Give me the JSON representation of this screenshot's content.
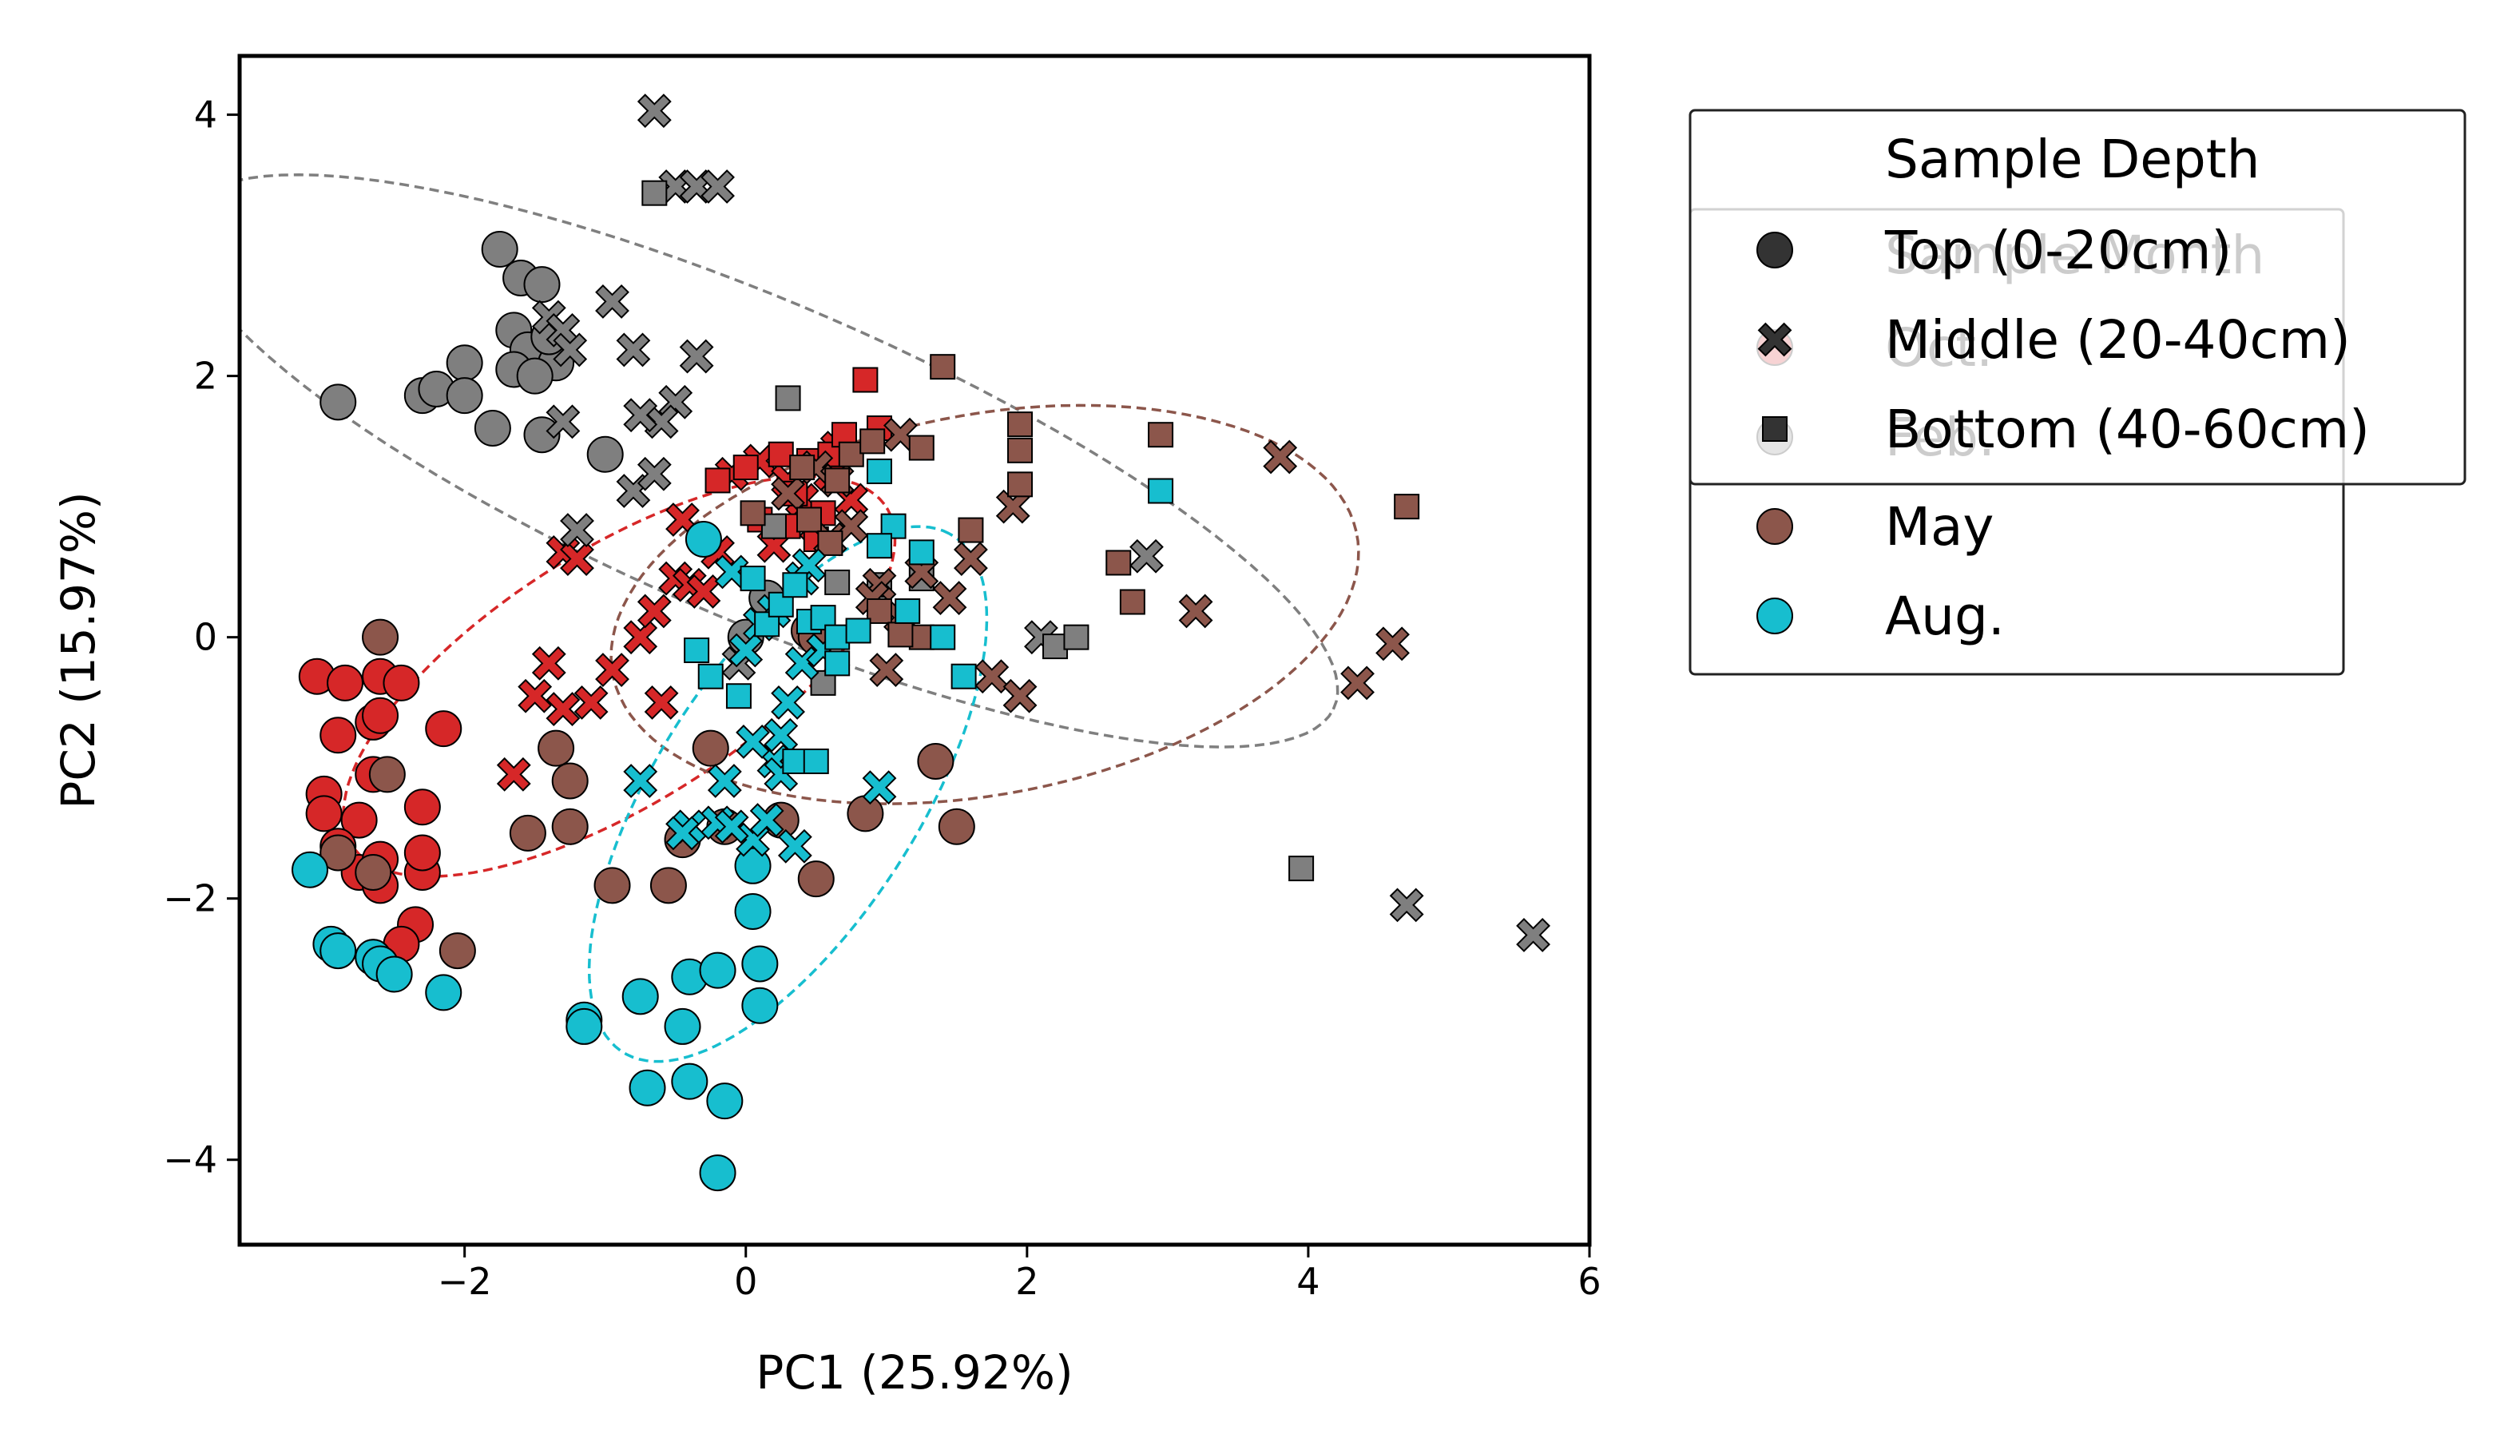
{
  "chart_data": {
    "type": "scatter",
    "title": "",
    "xlabel": "PC1 (25.92%)",
    "ylabel": "PC2 (15.97%)",
    "xlim": [
      -3.6,
      6.0
    ],
    "ylim": [
      -4.65,
      4.45
    ],
    "xticks": [
      -2,
      0,
      2,
      4,
      6
    ],
    "yticks": [
      -4,
      -2,
      0,
      2,
      4
    ],
    "grid": false,
    "colors": {
      "Oct.": "#d62728",
      "Feb.": "#7f7f7f",
      "May": "#8c564b",
      "Aug.": "#17becf",
      "legend_marker": "#333333"
    },
    "legend_month": {
      "title": "Sample Month",
      "placement": "upper-right-outside",
      "entries": [
        "Oct.",
        "Feb.",
        "May",
        "Aug."
      ]
    },
    "legend_depth": {
      "title": "Sample Depth",
      "placement": "upper-right-outside",
      "entries": [
        {
          "label": "Top (0-20cm)",
          "marker": "circle"
        },
        {
          "label": "Middle (20-40cm)",
          "marker": "x"
        },
        {
          "label": "Bottom (40-60cm)",
          "marker": "square"
        }
      ]
    },
    "ellipses": [
      {
        "group": "Oct.",
        "cx": -0.9,
        "cy": -0.3,
        "rx": 2.3,
        "ry": 0.95,
        "angle": 35
      },
      {
        "group": "Feb.",
        "cx": 0.1,
        "cy": 1.35,
        "rx": 4.5,
        "ry": 1.2,
        "angle": -25
      },
      {
        "group": "May",
        "cx": 1.7,
        "cy": 0.25,
        "rx": 2.7,
        "ry": 1.45,
        "angle": 12
      },
      {
        "group": "Aug.",
        "cx": 0.3,
        "cy": -1.2,
        "rx": 2.3,
        "ry": 0.95,
        "angle": 60
      }
    ],
    "series": [
      {
        "name": "Oct.",
        "top": [
          [
            -3.05,
            -0.3
          ],
          [
            -2.85,
            -0.35
          ],
          [
            -2.6,
            -0.3
          ],
          [
            -2.45,
            -0.35
          ],
          [
            -2.9,
            -0.75
          ],
          [
            -2.65,
            -0.65
          ],
          [
            -2.6,
            -0.6
          ],
          [
            -2.15,
            -0.7
          ],
          [
            -3.0,
            -1.2
          ],
          [
            -2.75,
            -1.4
          ],
          [
            -2.65,
            -1.05
          ],
          [
            -2.3,
            -1.3
          ],
          [
            -3.0,
            -1.35
          ],
          [
            -2.9,
            -1.6
          ],
          [
            -2.75,
            -1.8
          ],
          [
            -2.6,
            -1.7
          ],
          [
            -2.6,
            -1.9
          ],
          [
            -2.3,
            -1.8
          ],
          [
            -2.3,
            -1.65
          ],
          [
            -2.35,
            -2.2
          ],
          [
            -2.45,
            -2.35
          ],
          [
            -2.65,
            -2.45
          ]
        ],
        "middle": [
          [
            -1.65,
            -1.05
          ],
          [
            -1.5,
            -0.45
          ],
          [
            -1.4,
            -0.2
          ],
          [
            -1.3,
            -0.55
          ],
          [
            -1.1,
            -0.5
          ],
          [
            -0.95,
            -0.25
          ],
          [
            -0.75,
            0.0
          ],
          [
            -0.65,
            0.2
          ],
          [
            -0.6,
            -0.5
          ],
          [
            -0.5,
            0.45
          ],
          [
            -0.45,
            0.9
          ],
          [
            -0.4,
            0.4
          ],
          [
            -0.3,
            0.35
          ],
          [
            -0.2,
            0.65
          ],
          [
            -0.1,
            1.25
          ],
          [
            0.1,
            1.35
          ],
          [
            0.2,
            0.7
          ],
          [
            0.3,
            1.2
          ],
          [
            0.4,
            1.05
          ],
          [
            0.5,
            0.85
          ],
          [
            0.6,
            1.25
          ],
          [
            0.65,
            1.45
          ],
          [
            0.75,
            1.05
          ],
          [
            -1.3,
            0.65
          ],
          [
            -1.2,
            0.6
          ]
        ],
        "bottom": [
          [
            -0.2,
            1.2
          ],
          [
            0.0,
            1.3
          ],
          [
            0.1,
            0.9
          ],
          [
            0.25,
            1.4
          ],
          [
            0.35,
            1.1
          ],
          [
            0.45,
            1.35
          ],
          [
            0.55,
            0.95
          ],
          [
            0.6,
            1.4
          ],
          [
            0.7,
            1.55
          ],
          [
            0.85,
            1.97
          ],
          [
            0.95,
            1.6
          ],
          [
            0.3,
            0.85
          ],
          [
            0.5,
            0.75
          ]
        ]
      },
      {
        "name": "Feb.",
        "top": [
          [
            -1.75,
            2.97
          ],
          [
            -1.6,
            2.75
          ],
          [
            -1.45,
            2.7
          ],
          [
            -1.65,
            2.35
          ],
          [
            -1.55,
            2.2
          ],
          [
            -1.35,
            2.1
          ],
          [
            -1.4,
            2.3
          ],
          [
            -2.0,
            2.1
          ],
          [
            -2.3,
            1.85
          ],
          [
            -2.2,
            1.9
          ],
          [
            -2.0,
            1.85
          ],
          [
            -1.65,
            2.05
          ],
          [
            -1.5,
            2.0
          ],
          [
            -1.8,
            1.6
          ],
          [
            -1.45,
            1.55
          ],
          [
            -1.0,
            1.4
          ],
          [
            -2.9,
            1.8
          ],
          [
            0.0,
            0.0
          ],
          [
            0.15,
            0.3
          ]
        ],
        "middle": [
          [
            -0.65,
            4.03
          ],
          [
            -0.5,
            3.45
          ],
          [
            -0.35,
            3.45
          ],
          [
            -0.2,
            3.45
          ],
          [
            -0.95,
            2.57
          ],
          [
            -1.4,
            2.45
          ],
          [
            -1.3,
            2.35
          ],
          [
            -1.25,
            2.2
          ],
          [
            -0.8,
            2.2
          ],
          [
            -0.35,
            2.15
          ],
          [
            -0.5,
            1.8
          ],
          [
            -0.6,
            1.65
          ],
          [
            -0.75,
            1.7
          ],
          [
            -1.3,
            1.65
          ],
          [
            -0.8,
            1.12
          ],
          [
            -0.65,
            1.25
          ],
          [
            -1.2,
            0.82
          ],
          [
            -0.05,
            -0.2
          ],
          [
            2.1,
            0.0
          ],
          [
            2.85,
            0.62
          ],
          [
            4.7,
            -2.05
          ],
          [
            5.6,
            -2.28
          ]
        ],
        "bottom": [
          [
            -0.65,
            3.4
          ],
          [
            0.3,
            1.83
          ],
          [
            0.65,
            0.42
          ],
          [
            0.2,
            0.85
          ],
          [
            0.55,
            -0.35
          ],
          [
            2.2,
            -0.07
          ],
          [
            2.35,
            0.0
          ],
          [
            3.95,
            -1.77
          ],
          [
            0.95,
            0.4
          ],
          [
            1.25,
            0.45
          ]
        ]
      },
      {
        "name": "May",
        "top": [
          [
            -2.6,
            0.0
          ],
          [
            -2.9,
            -1.65
          ],
          [
            -2.65,
            -1.8
          ],
          [
            -2.55,
            -1.05
          ],
          [
            -2.05,
            -2.4
          ],
          [
            -1.35,
            -0.85
          ],
          [
            -1.25,
            -1.45
          ],
          [
            -1.25,
            -1.1
          ],
          [
            -1.55,
            -1.5
          ],
          [
            -0.95,
            -1.9
          ],
          [
            -0.55,
            -1.9
          ],
          [
            -0.45,
            -1.55
          ],
          [
            -0.25,
            -0.85
          ],
          [
            -0.15,
            -1.45
          ],
          [
            0.25,
            -1.4
          ],
          [
            0.5,
            -1.85
          ],
          [
            0.85,
            -1.35
          ],
          [
            1.35,
            -0.95
          ],
          [
            1.5,
            -1.45
          ],
          [
            0.45,
            0.05
          ],
          [
            0.5,
            0.0
          ]
        ],
        "middle": [
          [
            0.3,
            1.1
          ],
          [
            0.5,
            1.3
          ],
          [
            0.65,
            1.2
          ],
          [
            1.1,
            1.55
          ],
          [
            1.25,
            0.5
          ],
          [
            1.45,
            0.3
          ],
          [
            1.6,
            0.6
          ],
          [
            1.9,
            1.0
          ],
          [
            1.75,
            -0.3
          ],
          [
            1.95,
            -0.45
          ],
          [
            0.6,
            0.75
          ],
          [
            0.75,
            0.85
          ],
          [
            0.95,
            0.4
          ],
          [
            1.1,
            0.15
          ],
          [
            1.0,
            -0.25
          ],
          [
            3.2,
            0.2
          ],
          [
            3.8,
            1.38
          ],
          [
            4.35,
            -0.35
          ],
          [
            4.6,
            -0.05
          ],
          [
            0.9,
            0.3
          ]
        ],
        "bottom": [
          [
            0.05,
            0.95
          ],
          [
            0.4,
            1.3
          ],
          [
            0.45,
            0.9
          ],
          [
            0.65,
            1.2
          ],
          [
            0.75,
            1.4
          ],
          [
            0.9,
            1.5
          ],
          [
            1.25,
            1.45
          ],
          [
            1.4,
            2.07
          ],
          [
            1.95,
            1.63
          ],
          [
            1.95,
            1.17
          ],
          [
            2.95,
            1.55
          ],
          [
            2.65,
            0.57
          ],
          [
            2.75,
            0.27
          ],
          [
            1.6,
            0.82
          ],
          [
            1.95,
            1.43
          ],
          [
            4.7,
            1.0
          ],
          [
            1.25,
            0.0
          ],
          [
            0.95,
            0.2
          ],
          [
            1.1,
            0.02
          ],
          [
            0.6,
            0.72
          ]
        ]
      },
      {
        "name": "Aug.",
        "top": [
          [
            -3.1,
            -1.78
          ],
          [
            -2.95,
            -2.35
          ],
          [
            -2.9,
            -2.4
          ],
          [
            -2.65,
            -2.45
          ],
          [
            -2.6,
            -2.5
          ],
          [
            -2.5,
            -2.58
          ],
          [
            -2.15,
            -2.72
          ],
          [
            -1.15,
            -2.93
          ],
          [
            -1.15,
            -2.98
          ],
          [
            -0.75,
            -2.75
          ],
          [
            -0.7,
            -3.45
          ],
          [
            -0.4,
            -3.4
          ],
          [
            -0.4,
            -2.6
          ],
          [
            -0.2,
            -2.55
          ],
          [
            -0.45,
            -2.98
          ],
          [
            0.1,
            -2.5
          ],
          [
            0.1,
            -2.82
          ],
          [
            -0.15,
            -3.55
          ],
          [
            0.05,
            -1.75
          ],
          [
            0.05,
            -2.1
          ],
          [
            -0.2,
            -4.1
          ],
          [
            -0.3,
            0.75
          ]
        ],
        "middle": [
          [
            -0.75,
            -1.1
          ],
          [
            -0.4,
            -1.45
          ],
          [
            -0.2,
            -1.42
          ],
          [
            -0.15,
            -1.1
          ],
          [
            0.05,
            -1.55
          ],
          [
            0.15,
            -1.4
          ],
          [
            0.2,
            -0.95
          ],
          [
            0.25,
            -1.05
          ],
          [
            0.25,
            -0.75
          ],
          [
            0.35,
            -1.6
          ],
          [
            0.3,
            -0.5
          ],
          [
            0.4,
            -0.2
          ],
          [
            0.55,
            -0.1
          ],
          [
            0.4,
            0.45
          ],
          [
            0.45,
            0.55
          ],
          [
            0.2,
            0.2
          ],
          [
            0.1,
            0.1
          ],
          [
            0.0,
            -0.1
          ],
          [
            -0.1,
            0.5
          ],
          [
            0.95,
            -1.15
          ],
          [
            -0.45,
            -1.5
          ],
          [
            -0.1,
            -1.45
          ],
          [
            0.05,
            -0.8
          ]
        ],
        "bottom": [
          [
            -0.25,
            -0.3
          ],
          [
            -0.05,
            -0.45
          ],
          [
            0.05,
            0.45
          ],
          [
            0.15,
            0.1
          ],
          [
            0.25,
            0.25
          ],
          [
            0.35,
            0.4
          ],
          [
            0.45,
            0.12
          ],
          [
            0.55,
            0.15
          ],
          [
            0.65,
            -0.2
          ],
          [
            0.35,
            -0.95
          ],
          [
            0.5,
            -0.95
          ],
          [
            0.65,
            0.0
          ],
          [
            0.95,
            1.27
          ],
          [
            1.05,
            0.85
          ],
          [
            1.15,
            0.2
          ],
          [
            1.4,
            0.0
          ],
          [
            1.55,
            -0.3
          ],
          [
            2.95,
            1.12
          ],
          [
            -0.35,
            -0.1
          ],
          [
            0.95,
            0.7
          ],
          [
            1.25,
            0.65
          ],
          [
            0.8,
            0.05
          ]
        ]
      }
    ]
  }
}
